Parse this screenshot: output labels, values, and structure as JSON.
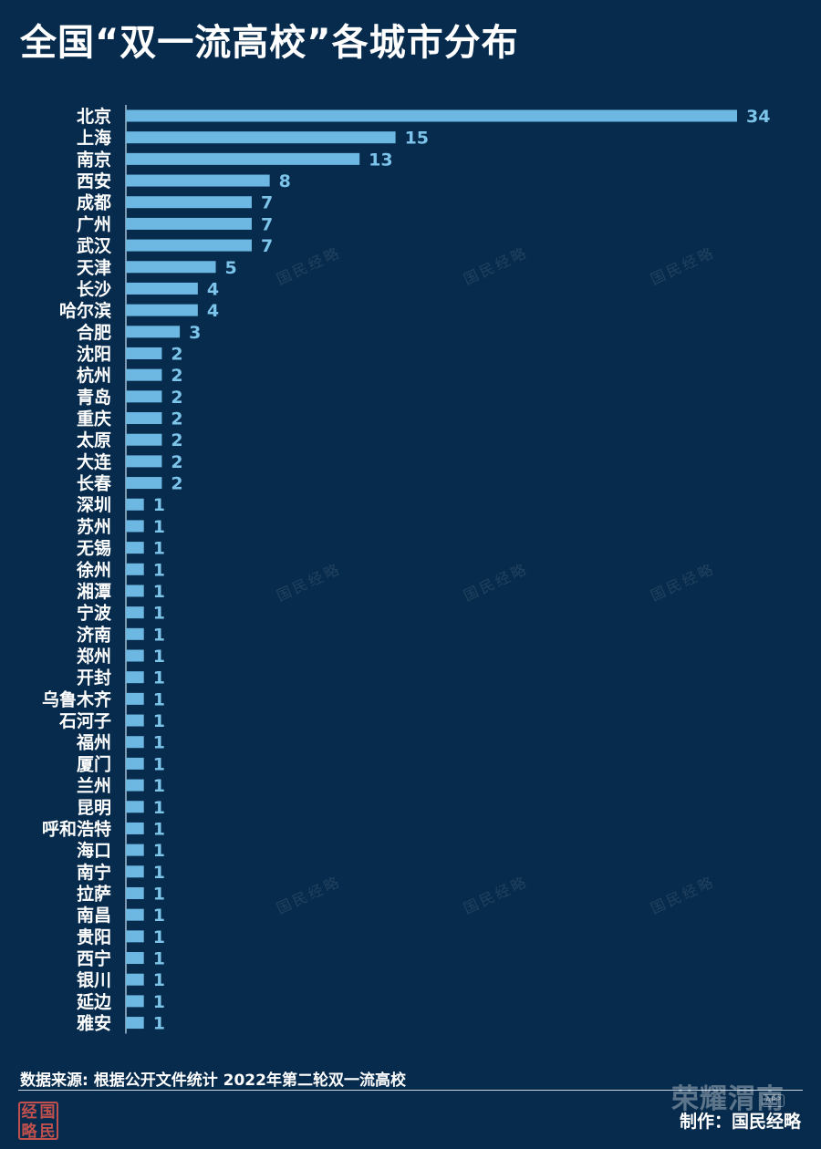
{
  "title": "全国“双一流高校”各城市分布",
  "source_text": "数据来源: 根据公开文件统计 2022年第二轮双一流高校",
  "maker_text": "制作：国民经略",
  "logo_chars": [
    "经",
    "国",
    "略",
    "民"
  ],
  "watermark_text": "国民经略",
  "overlay_watermark": {
    "brand": "荣耀渭南",
    "app": "APP"
  },
  "colors": {
    "background": "#072b4c",
    "bar": "#6cb8e2",
    "value_label": "#7cc4ea",
    "logo": "#c0504d"
  },
  "chart_data": {
    "type": "bar",
    "orientation": "horizontal",
    "title": "全国“双一流高校”各城市分布",
    "xlabel": "",
    "ylabel": "",
    "grid": false,
    "legend": "none",
    "xlim": [
      0,
      34
    ],
    "categories": [
      "北京",
      "上海",
      "南京",
      "西安",
      "成都",
      "广州",
      "武汉",
      "天津",
      "长沙",
      "哈尔滨",
      "合肥",
      "沈阳",
      "杭州",
      "青岛",
      "重庆",
      "太原",
      "大连",
      "长春",
      "深圳",
      "苏州",
      "无锡",
      "徐州",
      "湘潭",
      "宁波",
      "济南",
      "郑州",
      "开封",
      "乌鲁木齐",
      "石河子",
      "福州",
      "厦门",
      "兰州",
      "昆明",
      "呼和浩特",
      "海口",
      "南宁",
      "拉萨",
      "南昌",
      "贵阳",
      "西宁",
      "银川",
      "延边",
      "雅安"
    ],
    "values": [
      34,
      15,
      13,
      8,
      7,
      7,
      7,
      5,
      4,
      4,
      3,
      2,
      2,
      2,
      2,
      2,
      2,
      2,
      1,
      1,
      1,
      1,
      1,
      1,
      1,
      1,
      1,
      1,
      1,
      1,
      1,
      1,
      1,
      1,
      1,
      1,
      1,
      1,
      1,
      1,
      1,
      1,
      1
    ]
  }
}
